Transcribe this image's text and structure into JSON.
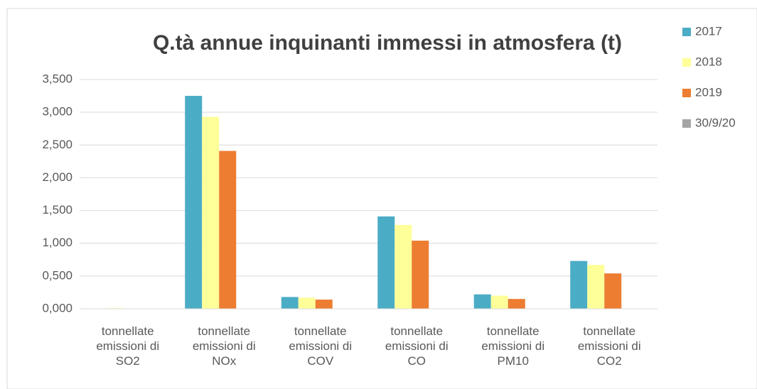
{
  "chart_data": {
    "type": "bar",
    "title": "Q.tà annue inquinanti immessi in atmosfera (t)",
    "categories": [
      "tonnellate emissioni di SO2",
      "tonnellate emissioni di NOx",
      "tonnellate emissioni di COV",
      "tonnellate emissioni di CO",
      "tonnellate emissioni di PM10",
      "tonnellate emissioni di CO2"
    ],
    "series": [
      {
        "name": "2017",
        "color": "#4bacc6",
        "values": [
          0,
          3.25,
          0.18,
          1.41,
          0.22,
          0.73
        ]
      },
      {
        "name": "2018",
        "color": "#ffff99",
        "values": [
          0.01,
          2.93,
          0.17,
          1.28,
          0.2,
          0.67
        ]
      },
      {
        "name": "2019",
        "color": "#ed7d31",
        "values": [
          0,
          2.41,
          0.14,
          1.04,
          0.15,
          0.54
        ]
      },
      {
        "name": "30/9/20",
        "color": "#a5a5a5",
        "values": [
          0,
          0,
          0,
          0,
          0,
          0
        ]
      }
    ],
    "ylim": [
      0,
      3.5
    ],
    "yticks": [
      {
        "value": 0,
        "label": "0,000"
      },
      {
        "value": 0.5,
        "label": "0,500"
      },
      {
        "value": 1,
        "label": "1,000"
      },
      {
        "value": 1.5,
        "label": "1,500"
      },
      {
        "value": 2,
        "label": "2,000"
      },
      {
        "value": 2.5,
        "label": "2,500"
      },
      {
        "value": 3,
        "label": "3,000"
      },
      {
        "value": 3.5,
        "label": "3,500"
      }
    ],
    "grid": true,
    "legend": "right"
  }
}
